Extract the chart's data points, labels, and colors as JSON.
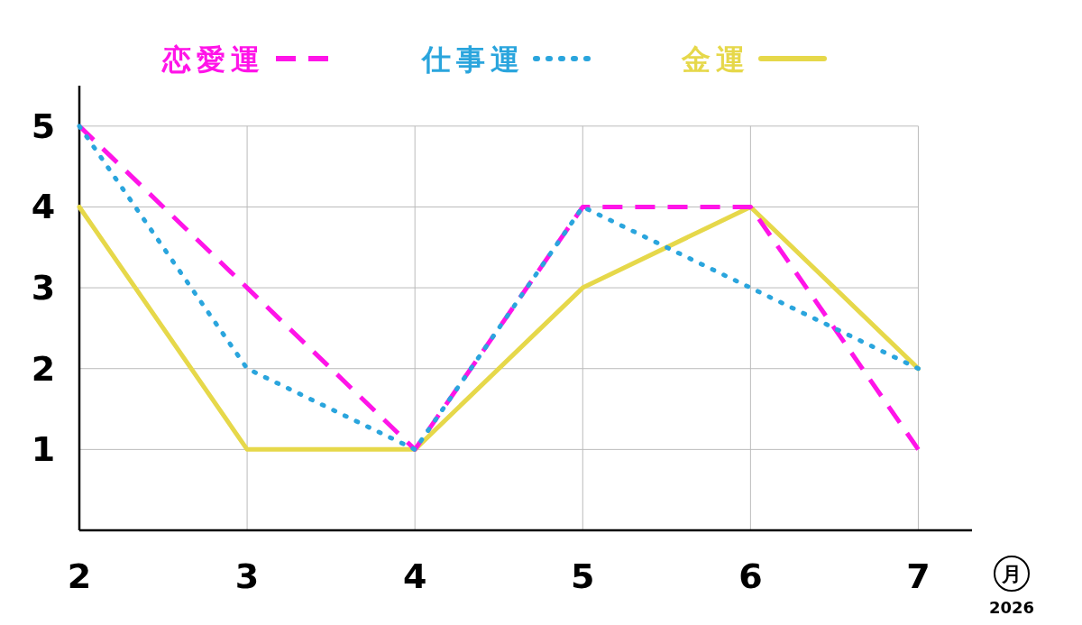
{
  "chart_data": {
    "type": "line",
    "xlabel": "月",
    "annotations": [
      "2026"
    ],
    "x": [
      2,
      3,
      4,
      5,
      6,
      7
    ],
    "xlim": [
      2,
      7.32
    ],
    "xticks": [
      2,
      3,
      4,
      5,
      6,
      7
    ],
    "ylim": [
      0,
      5.5
    ],
    "yticks": [
      1,
      2,
      3,
      4,
      5
    ],
    "grid": true,
    "legend": "top",
    "marker": "none",
    "series": [
      {
        "name": "恋愛運",
        "color": "#ff14e8",
        "line_style": "dashed",
        "values": [
          5,
          3,
          1,
          4,
          4,
          1
        ]
      },
      {
        "name": "仕事運",
        "color": "#2aa5dd",
        "line_style": "dotted",
        "values": [
          5,
          2,
          1,
          4,
          3,
          2
        ]
      },
      {
        "name": "金運",
        "color": "#e6d84a",
        "line_style": "solid",
        "values": [
          4,
          1,
          1,
          3,
          4,
          2
        ]
      }
    ]
  }
}
